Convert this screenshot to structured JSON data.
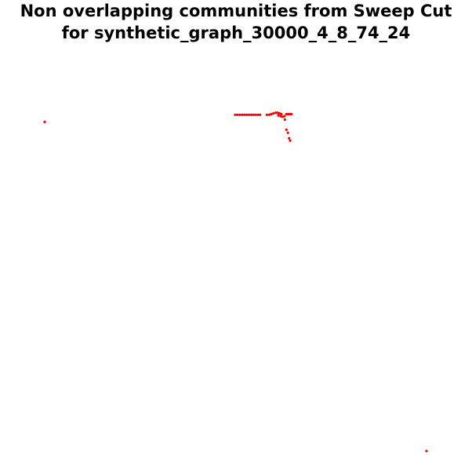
{
  "chart_data": {
    "type": "scatter",
    "title_lines": [
      "Non overlapping communities from Sweep Cut",
      "for synthetic_graph_30000_4_8_74_24"
    ],
    "xlabel": "",
    "ylabel": "",
    "grid": false,
    "axes_visible": false,
    "xlim": [
      0,
      100
    ],
    "ylim": [
      0,
      100
    ],
    "series": [
      {
        "color": "#ff0000",
        "points": [
          [
            0.0,
            96.9
          ],
          [
            49.9,
            99.0
          ],
          [
            50.5,
            99.0
          ],
          [
            51.1,
            99.0
          ],
          [
            51.7,
            99.0
          ],
          [
            52.3,
            99.0
          ],
          [
            52.9,
            99.0
          ],
          [
            53.5,
            99.0
          ],
          [
            54.1,
            99.0
          ],
          [
            54.7,
            99.0
          ],
          [
            55.3,
            99.0
          ],
          [
            55.9,
            99.0
          ],
          [
            56.4,
            99.0
          ],
          [
            58.2,
            99.0
          ],
          [
            58.8,
            99.0
          ],
          [
            59.3,
            99.2
          ],
          [
            59.9,
            99.4
          ],
          [
            60.5,
            99.6
          ],
          [
            61.0,
            99.6
          ],
          [
            61.5,
            99.4
          ],
          [
            62.0,
            99.2
          ],
          [
            61.2,
            98.8
          ],
          [
            61.8,
            98.6
          ],
          [
            62.3,
            98.4
          ],
          [
            62.8,
            98.6
          ],
          [
            63.3,
            99.2
          ],
          [
            63.8,
            99.2
          ],
          [
            64.3,
            99.2
          ],
          [
            64.6,
            99.2
          ],
          [
            62.9,
            97.6
          ],
          [
            63.3,
            94.6
          ],
          [
            63.7,
            93.7
          ],
          [
            64.0,
            92.1
          ],
          [
            64.3,
            91.4
          ],
          [
            100.0,
            0.0
          ]
        ]
      }
    ]
  }
}
